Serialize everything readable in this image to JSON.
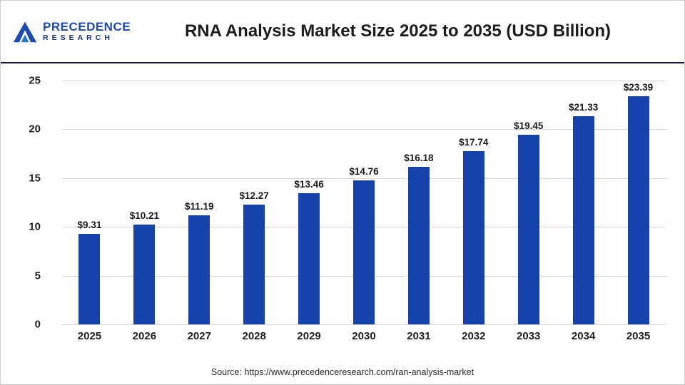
{
  "header": {
    "logo_line1": "PRECEDENCE",
    "logo_line2": "RESEARCH",
    "title": "RNA Analysis Market Size 2025 to 2035 (USD Billion)"
  },
  "footer": {
    "source": "Source: https://www.precedenceresearch.com/ran-analysis-market"
  },
  "colors": {
    "bar": "#1543ab",
    "logo_blue": "#1d49b5",
    "logo_dark_blue": "#16337e",
    "grid": "#d7d7d7",
    "header_rule": "#14193a"
  },
  "chart_data": {
    "type": "bar",
    "title": "RNA Analysis Market Size 2025 to 2035 (USD Billion)",
    "categories": [
      "2025",
      "2026",
      "2027",
      "2028",
      "2029",
      "2030",
      "2031",
      "2032",
      "2033",
      "2034",
      "2035"
    ],
    "values": [
      9.31,
      10.21,
      11.19,
      12.27,
      13.46,
      14.76,
      16.18,
      17.74,
      19.45,
      21.33,
      23.39
    ],
    "value_labels": [
      "$9.31",
      "$10.21",
      "$11.19",
      "$12.27",
      "$13.46",
      "$14.76",
      "$16.18",
      "$17.74",
      "$19.45",
      "$21.33",
      "$23.39"
    ],
    "xlabel": "",
    "ylabel": "",
    "ylim": [
      0,
      25
    ],
    "yticks": [
      0,
      5,
      10,
      15,
      20,
      25
    ],
    "grid": "horizontal",
    "legend": "none"
  }
}
